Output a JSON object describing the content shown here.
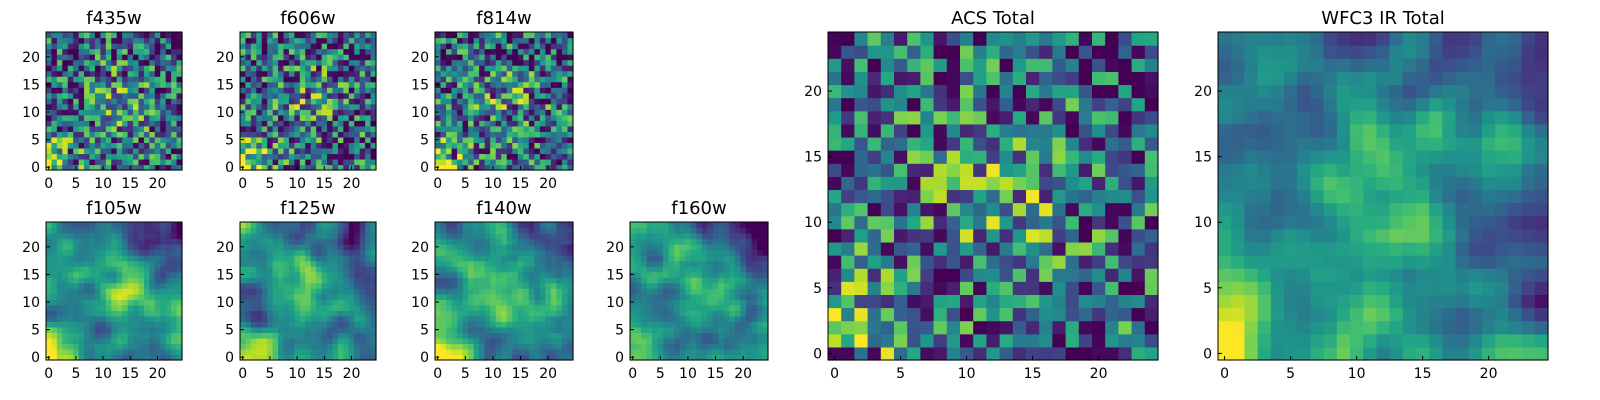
{
  "chart_data": [
    {
      "type": "heatmap",
      "title": "f435w",
      "xticks": [
        "0",
        "5",
        "10",
        "15",
        "20"
      ],
      "yticks": [
        "0",
        "5",
        "10",
        "15",
        "20"
      ],
      "xlim": [
        0,
        25
      ],
      "ylim": [
        0,
        25
      ],
      "colormap": "viridis",
      "grid": false,
      "style": "noise"
    },
    {
      "type": "heatmap",
      "title": "f606w",
      "xticks": [
        "0",
        "5",
        "10",
        "15",
        "20"
      ],
      "yticks": [
        "0",
        "5",
        "10",
        "15",
        "20"
      ],
      "xlim": [
        0,
        25
      ],
      "ylim": [
        0,
        25
      ],
      "colormap": "viridis",
      "grid": false,
      "style": "noise"
    },
    {
      "type": "heatmap",
      "title": "f814w",
      "xticks": [
        "0",
        "5",
        "10",
        "15",
        "20"
      ],
      "yticks": [
        "0",
        "5",
        "10",
        "15",
        "20"
      ],
      "xlim": [
        0,
        25
      ],
      "ylim": [
        0,
        25
      ],
      "colormap": "viridis",
      "grid": false,
      "style": "noise"
    },
    {
      "type": "heatmap",
      "title": "f105w",
      "xticks": [
        "0",
        "5",
        "10",
        "15",
        "20"
      ],
      "yticks": [
        "0",
        "5",
        "10",
        "15",
        "20"
      ],
      "xlim": [
        0,
        25
      ],
      "ylim": [
        0,
        25
      ],
      "colormap": "viridis",
      "grid": false,
      "style": "smooth"
    },
    {
      "type": "heatmap",
      "title": "f125w",
      "xticks": [
        "0",
        "5",
        "10",
        "15",
        "20"
      ],
      "yticks": [
        "0",
        "5",
        "10",
        "15",
        "20"
      ],
      "xlim": [
        0,
        25
      ],
      "ylim": [
        0,
        25
      ],
      "colormap": "viridis",
      "grid": false,
      "style": "smooth"
    },
    {
      "type": "heatmap",
      "title": "f140w",
      "xticks": [
        "0",
        "5",
        "10",
        "15",
        "20"
      ],
      "yticks": [
        "0",
        "5",
        "10",
        "15",
        "20"
      ],
      "xlim": [
        0,
        25
      ],
      "ylim": [
        0,
        25
      ],
      "colormap": "viridis",
      "grid": false,
      "style": "smooth"
    },
    {
      "type": "heatmap",
      "title": "f160w",
      "xticks": [
        "0",
        "5",
        "10",
        "15",
        "20"
      ],
      "yticks": [
        "0",
        "5",
        "10",
        "15",
        "20"
      ],
      "xlim": [
        0,
        25
      ],
      "ylim": [
        0,
        25
      ],
      "colormap": "viridis",
      "grid": false,
      "style": "smooth"
    },
    {
      "type": "heatmap",
      "title": "ACS Total",
      "xticks": [
        "0",
        "5",
        "10",
        "15",
        "20"
      ],
      "yticks": [
        "0",
        "5",
        "10",
        "15",
        "20"
      ],
      "xlim": [
        0,
        25
      ],
      "ylim": [
        0,
        25
      ],
      "colormap": "viridis",
      "grid": false,
      "style": "noise"
    },
    {
      "type": "heatmap",
      "title": "WFC3 IR Total",
      "xticks": [
        "0",
        "5",
        "10",
        "15",
        "20"
      ],
      "yticks": [
        "0",
        "5",
        "10",
        "15",
        "20"
      ],
      "xlim": [
        0,
        25
      ],
      "ylim": [
        0,
        25
      ],
      "colormap": "viridis",
      "grid": false,
      "style": "smooth"
    }
  ]
}
